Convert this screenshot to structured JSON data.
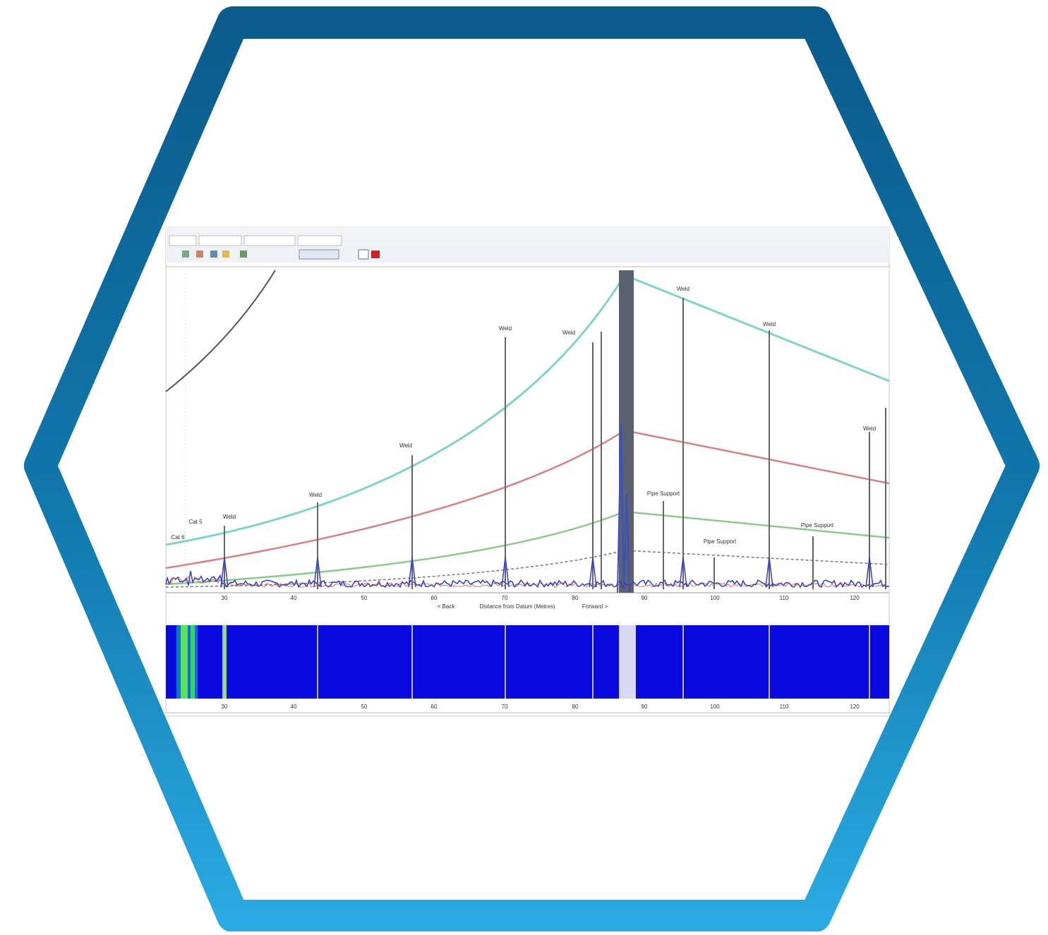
{
  "plot": {
    "annotations": [
      "Cat 6",
      "Cat 5",
      "Weld",
      "Weld",
      "Weld",
      "Weld",
      "Weld",
      "Weld",
      "Pipe Support",
      "Weld",
      "Pipe Support",
      "Weld",
      "Pipe Support"
    ],
    "x_ticks": [
      "30",
      "40",
      "50",
      "60",
      "70",
      "80",
      "90",
      "100",
      "110",
      "120"
    ],
    "back": "< Back",
    "x_title": "Distance from Datum (Metres)",
    "forward": "Forward >"
  },
  "heatmap": {
    "x_ticks": [
      "30",
      "40",
      "50",
      "60",
      "70",
      "80",
      "90",
      "100",
      "110",
      "120"
    ]
  }
}
